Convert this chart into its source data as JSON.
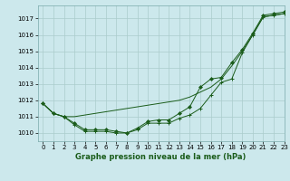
{
  "title": "Graphe pression niveau de la mer (hPa)",
  "background_color": "#cce8ec",
  "grid_color": "#aacccc",
  "line_color": "#1a5c1a",
  "xlim": [
    -0.5,
    23
  ],
  "ylim": [
    1009.5,
    1017.8
  ],
  "yticks": [
    1010,
    1011,
    1012,
    1013,
    1014,
    1015,
    1016,
    1017
  ],
  "xticks": [
    0,
    1,
    2,
    3,
    4,
    5,
    6,
    7,
    8,
    9,
    10,
    11,
    12,
    13,
    14,
    15,
    16,
    17,
    18,
    19,
    20,
    21,
    22,
    23
  ],
  "series_bottom": [
    1011.8,
    1011.2,
    1011.0,
    1010.5,
    1010.1,
    1010.1,
    1010.1,
    1010.0,
    1010.0,
    1010.2,
    1010.6,
    1010.6,
    1010.6,
    1010.9,
    1011.1,
    1011.5,
    1012.3,
    1013.1,
    1013.3,
    1014.9,
    1016.0,
    1017.1,
    1017.2,
    1017.3
  ],
  "series_middle": [
    1011.8,
    1011.2,
    1011.0,
    1011.0,
    1011.1,
    1011.2,
    1011.3,
    1011.4,
    1011.5,
    1011.6,
    1011.7,
    1011.8,
    1011.9,
    1012.0,
    1012.2,
    1012.5,
    1012.8,
    1013.3,
    1014.1,
    1015.0,
    1016.0,
    1017.1,
    1017.2,
    1017.3
  ],
  "series_top": [
    1011.8,
    1011.2,
    1011.0,
    1010.6,
    1010.2,
    1010.2,
    1010.2,
    1010.1,
    1010.0,
    1010.3,
    1010.7,
    1010.8,
    1010.8,
    1011.2,
    1011.6,
    1012.8,
    1013.3,
    1013.4,
    1014.3,
    1015.1,
    1016.1,
    1017.2,
    1017.3,
    1017.4
  ],
  "marker_color": "#1a5c1a",
  "tick_fontsize": 5,
  "label_fontsize": 6,
  "figsize": [
    3.2,
    2.0
  ],
  "dpi": 100
}
